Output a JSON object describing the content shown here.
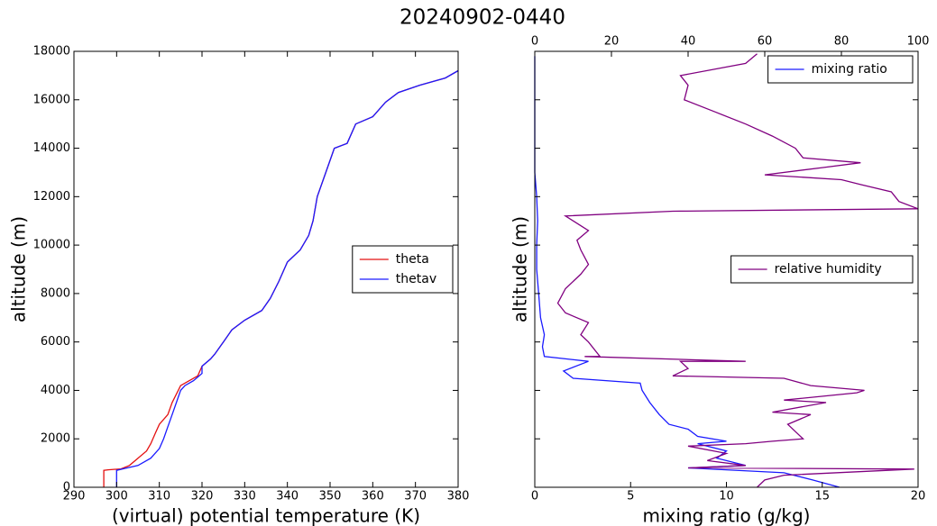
{
  "title": "20240902-0440",
  "chart_data": [
    {
      "type": "line",
      "xlabel": "(virtual) potential temperature (K)",
      "ylabel": "altitude (m)",
      "xlim": [
        290,
        380
      ],
      "xticks": [
        290,
        300,
        310,
        320,
        330,
        340,
        350,
        360,
        370,
        380
      ],
      "ylim": [
        0,
        18000
      ],
      "yticks": [
        0,
        2000,
        4000,
        6000,
        8000,
        10000,
        12000,
        14000,
        16000,
        18000
      ],
      "ytick_labels": true,
      "series": [
        {
          "name": "theta",
          "color": "#e41010",
          "legend": "center right",
          "x": [
            297,
            297,
            298,
            301,
            303,
            305,
            307,
            308,
            309,
            310,
            312,
            313,
            315,
            317,
            319,
            320,
            322,
            323,
            325,
            327,
            330,
            334,
            336,
            338,
            340,
            343,
            345,
            346,
            347,
            349,
            351,
            354,
            356,
            360,
            363,
            366,
            371,
            377,
            380
          ],
          "y": [
            0,
            700,
            720,
            760,
            900,
            1200,
            1500,
            1800,
            2200,
            2600,
            3000,
            3500,
            4200,
            4400,
            4600,
            5000,
            5300,
            5500,
            6000,
            6500,
            6900,
            7300,
            7800,
            8500,
            9300,
            9800,
            10400,
            11000,
            12000,
            13000,
            14000,
            14200,
            15000,
            15300,
            15900,
            16300,
            16600,
            16900,
            17200
          ]
        },
        {
          "name": "thetav",
          "color": "#1a1aff",
          "legend": "center right",
          "x": [
            300,
            300,
            302,
            305,
            308,
            310,
            311,
            312,
            313,
            314,
            315,
            316,
            318,
            320,
            320,
            322,
            323,
            325,
            327,
            330,
            334,
            336,
            338,
            340,
            343,
            345,
            346,
            347,
            349,
            351,
            354,
            356,
            360,
            363,
            366,
            371,
            377,
            380
          ],
          "y": [
            0,
            700,
            780,
            900,
            1200,
            1600,
            2000,
            2500,
            3000,
            3500,
            4000,
            4200,
            4400,
            4700,
            5000,
            5300,
            5500,
            6000,
            6500,
            6900,
            7300,
            7800,
            8500,
            9300,
            9800,
            10400,
            11000,
            12000,
            13000,
            14000,
            14200,
            15000,
            15300,
            15900,
            16300,
            16600,
            16900,
            17200
          ]
        }
      ]
    },
    {
      "type": "line",
      "xlabel": "mixing ratio (g/kg)",
      "ylabel": "altitude (m)",
      "xlim": [
        0,
        20
      ],
      "xticks": [
        0,
        5,
        10,
        15,
        20
      ],
      "x2lim": [
        0,
        100
      ],
      "x2ticks": [
        0,
        20,
        40,
        60,
        80,
        100
      ],
      "ylim": [
        0,
        18000
      ],
      "yticks": [
        0,
        2000,
        4000,
        6000,
        8000,
        10000,
        12000,
        14000,
        16000,
        18000
      ],
      "ytick_labels": false,
      "series": [
        {
          "name": "mixing ratio",
          "color": "#1a1aff",
          "legend": "upper right",
          "x": [
            15.9,
            14.5,
            13,
            8,
            11,
            9.5,
            10,
            8.5,
            10,
            8.5,
            8,
            7,
            6.5,
            6,
            5.6,
            5.5,
            2,
            1.5,
            2.8,
            0.5,
            0.4,
            0.5,
            0.3,
            0.2,
            0.1,
            0.1,
            0.15,
            0.1,
            0,
            0,
            0,
            0,
            0,
            0
          ],
          "y": [
            0,
            300,
            600,
            800,
            900,
            1200,
            1500,
            1800,
            1900,
            2100,
            2400,
            2600,
            3000,
            3500,
            4000,
            4300,
            4500,
            4800,
            5200,
            5400,
            5800,
            6300,
            7000,
            8000,
            9000,
            10000,
            11000,
            12000,
            13000,
            14000,
            15000,
            16000,
            17000,
            17800
          ]
        },
        {
          "name": "relative humidity",
          "color": "#800080",
          "axis": "x2",
          "legend": "center right",
          "x": [
            58,
            60,
            65,
            99,
            40,
            55,
            45,
            50,
            40,
            55,
            62,
            70,
            68,
            66,
            72,
            62,
            76,
            65,
            84,
            86,
            72,
            65,
            36,
            40,
            38,
            55,
            13,
            17,
            14,
            12,
            14,
            8,
            6,
            8,
            12,
            14,
            12,
            11,
            14,
            10,
            8,
            36,
            100,
            95,
            93,
            85,
            80,
            60,
            75,
            85,
            70,
            68,
            62,
            55,
            47,
            39,
            40,
            38,
            55,
            58
          ],
          "y": [
            0,
            300,
            500,
            750,
            800,
            900,
            1100,
            1400,
            1700,
            1800,
            1900,
            2000,
            2300,
            2600,
            3000,
            3100,
            3500,
            3600,
            3900,
            4000,
            4200,
            4500,
            4600,
            4900,
            5200,
            5200,
            5400,
            5400,
            6000,
            6300,
            6800,
            7200,
            7600,
            8200,
            8800,
            9200,
            9800,
            10200,
            10600,
            11000,
            11200,
            11400,
            11500,
            11800,
            12200,
            12500,
            12700,
            12900,
            13200,
            13400,
            13600,
            14000,
            14500,
            15000,
            15500,
            16000,
            16600,
            17000,
            17500,
            17900
          ]
        }
      ]
    }
  ]
}
